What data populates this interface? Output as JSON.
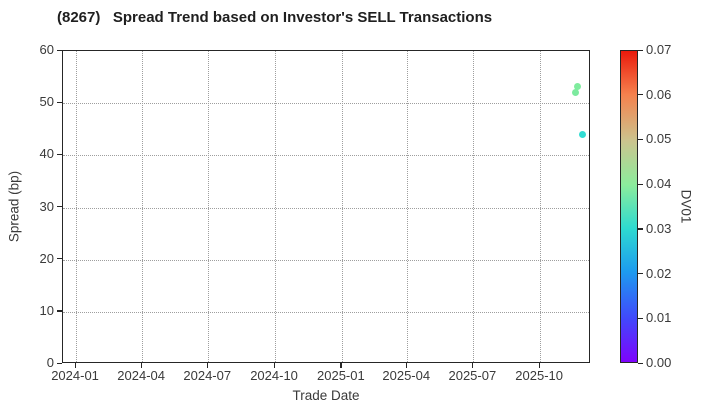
{
  "title": "(8267)   Spread Trend based on Investor's SELL Transactions",
  "chart_data": {
    "type": "scatter",
    "title": "(8267)   Spread Trend based on Investor's SELL Transactions",
    "xlabel": "Trade Date",
    "ylabel": "Spread (bp)",
    "xlim": [
      "2023-12-14",
      "2025-12-10"
    ],
    "ylim": [
      0,
      60
    ],
    "grid": true,
    "grid_style": "dotted",
    "x_ticks": [
      {
        "label": "2024-01",
        "date": "2024-01-01"
      },
      {
        "label": "2024-04",
        "date": "2024-04-01"
      },
      {
        "label": "2024-07",
        "date": "2024-07-01"
      },
      {
        "label": "2024-10",
        "date": "2024-10-01"
      },
      {
        "label": "2025-01",
        "date": "2025-01-01"
      },
      {
        "label": "2025-04",
        "date": "2025-04-01"
      },
      {
        "label": "2025-07",
        "date": "2025-07-01"
      },
      {
        "label": "2025-10",
        "date": "2025-10-01"
      }
    ],
    "y_ticks": [
      0,
      10,
      20,
      30,
      40,
      50,
      60
    ],
    "points": [
      {
        "date": "2025-11-19",
        "spread": 52.1,
        "dv01": 0.037,
        "color": "#7dea9f"
      },
      {
        "date": "2025-11-21",
        "spread": 53.1,
        "dv01": 0.038,
        "color": "#7fec9e"
      },
      {
        "date": "2025-11-28",
        "spread": 44.0,
        "dv01": 0.028,
        "color": "#32dcd3"
      }
    ],
    "colorbar": {
      "label": "DV01",
      "min": 0.0,
      "max": 0.07,
      "tick_labels": [
        "0.00",
        "0.01",
        "0.02",
        "0.03",
        "0.04",
        "0.05",
        "0.06",
        "0.07"
      ],
      "colormap": "rainbow",
      "gradient_stops": [
        {
          "pos": 0,
          "color": "#7e03fc"
        },
        {
          "pos": 14,
          "color": "#4148fb"
        },
        {
          "pos": 29,
          "color": "#1d9bef"
        },
        {
          "pos": 43,
          "color": "#2edad0"
        },
        {
          "pos": 57,
          "color": "#8cec9c"
        },
        {
          "pos": 71,
          "color": "#cbc48e"
        },
        {
          "pos": 86,
          "color": "#f5814d"
        },
        {
          "pos": 100,
          "color": "#ea1a0c"
        }
      ]
    },
    "colors": {
      "frame": "#262626",
      "grid": "#9e9e9e",
      "text": "#3a3a3a",
      "background": "#ffffff"
    }
  }
}
